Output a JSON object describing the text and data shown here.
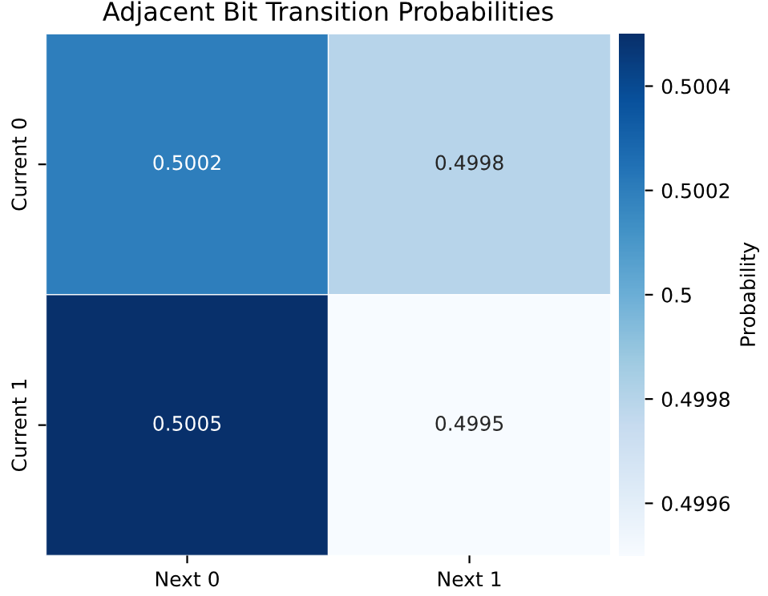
{
  "chart_data": {
    "type": "heatmap",
    "title": "Adjacent Bit Transition Probabilities",
    "categories": [
      "Next 0",
      "Next 1"
    ],
    "y_categories": [
      "Current 0",
      "Current 1"
    ],
    "cells": [
      [
        0.5002,
        0.4998
      ],
      [
        0.5005,
        0.4995
      ]
    ],
    "clim": [
      0.4995,
      0.5005
    ],
    "cticks": [
      0.4996,
      0.4998,
      0.5,
      0.5002,
      0.5004
    ],
    "clabel": "Probability",
    "data_labels": true
  }
}
